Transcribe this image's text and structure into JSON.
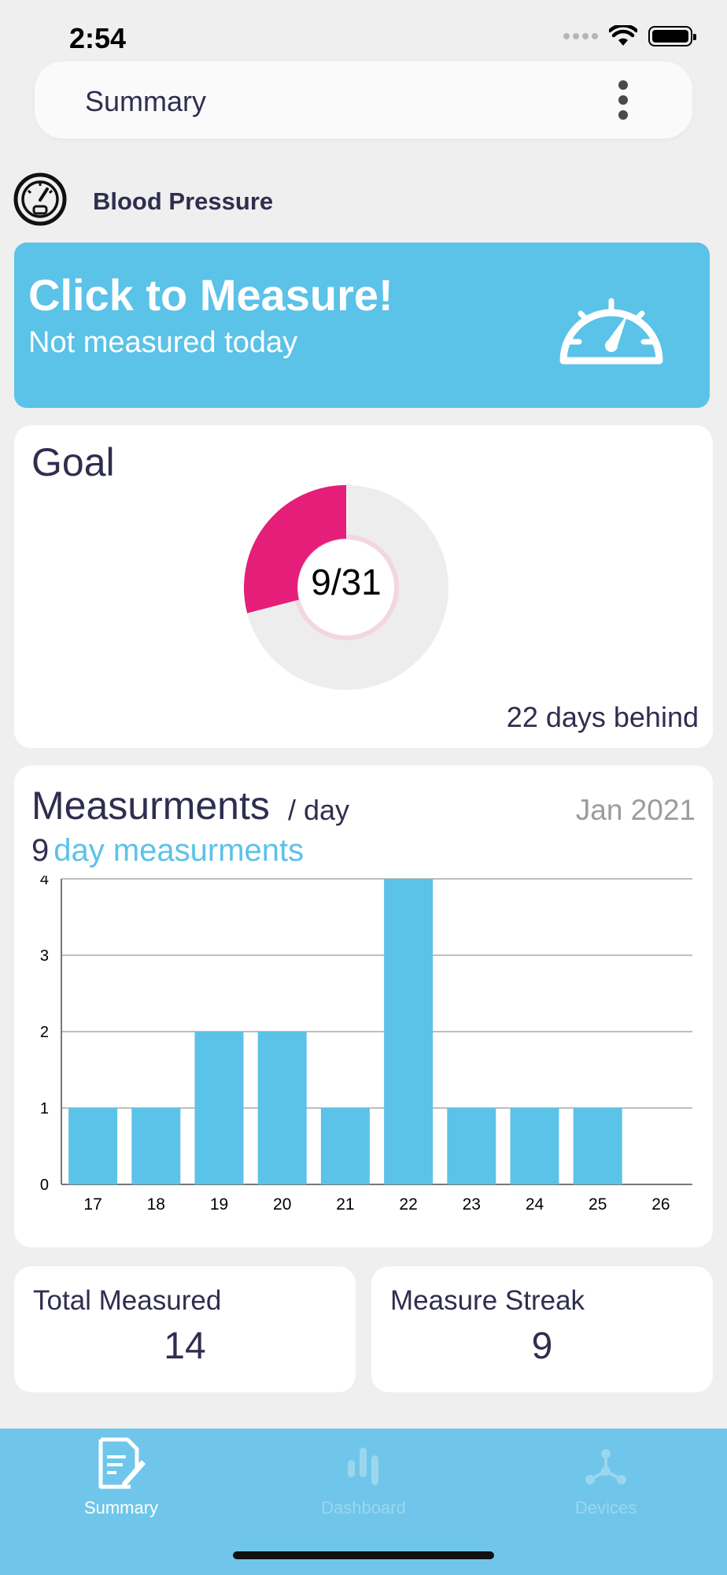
{
  "status_bar": {
    "time": "2:54"
  },
  "header": {
    "title": "Summary",
    "menu_icon": "kebab-menu-icon"
  },
  "section": {
    "title": "Blood Pressure",
    "icon": "gauge-icon"
  },
  "measure_card": {
    "title": "Click to Measure!",
    "subtitle": "Not measured today",
    "icon": "speedometer-icon",
    "color": "#5bc2e8"
  },
  "goal": {
    "title": "Goal",
    "done": 9,
    "total": 31,
    "label": "9/31",
    "behind_text": "22 days behind",
    "progress_color": "#e51f79",
    "track_color": "#ededed"
  },
  "measurements": {
    "title": "Measurments",
    "unit": "/ day",
    "month": "Jan 2021",
    "count": "9",
    "count_label": "day measurments"
  },
  "chart_data": {
    "type": "bar",
    "categories": [
      "17",
      "18",
      "19",
      "20",
      "21",
      "22",
      "23",
      "24",
      "25",
      "26"
    ],
    "values": [
      1,
      1,
      2,
      2,
      1,
      4,
      1,
      1,
      1,
      0
    ],
    "title": "",
    "xlabel": "",
    "ylabel": "",
    "ylim": [
      0,
      4
    ],
    "yticks": [
      "0",
      "1",
      "2",
      "3",
      "4"
    ],
    "grid": true,
    "bar_color": "#5bc2e8"
  },
  "stats": {
    "total_label": "Total Measured",
    "total_value": "14",
    "streak_label": "Measure Streak",
    "streak_value": "9"
  },
  "tabs": [
    {
      "label": "Summary",
      "icon": "document-edit-icon",
      "active": true
    },
    {
      "label": "Dashboard",
      "icon": "bar-chart-icon",
      "active": false
    },
    {
      "label": "Devices",
      "icon": "network-icon",
      "active": false
    }
  ]
}
